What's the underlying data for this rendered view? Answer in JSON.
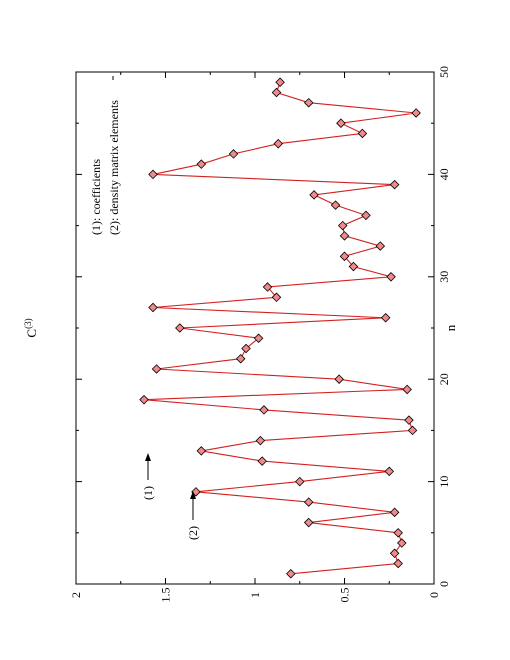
{
  "chart_data": {
    "type": "line",
    "orientation": "rotated-90-ccw",
    "xlabel": "n",
    "ylabel": "C",
    "ylabel_superscript": "(3)",
    "xlim": [
      0,
      50
    ],
    "ylim": [
      0,
      2
    ],
    "x_ticks": [
      "0",
      "10",
      "20",
      "30",
      "40",
      "50"
    ],
    "y_ticks": [
      "0",
      "0.5",
      "1",
      "1.5",
      "2"
    ],
    "grid": false,
    "marker": "diamond",
    "line_color": "#d42020",
    "marker_fill": "#f08a8a",
    "legend": {
      "placement": "top-left",
      "entries": [
        "(1): coefficients",
        "(2): density matrix elements"
      ]
    },
    "annotations": [
      {
        "label": "(1)",
        "x": 13,
        "y": 1.3
      },
      {
        "label": "(2)",
        "x": 9,
        "y": 1.32
      }
    ],
    "series": [
      {
        "x": [
          1,
          2,
          3,
          4,
          5,
          6,
          7,
          8,
          9,
          10,
          11,
          12,
          13,
          14,
          15,
          16,
          17,
          18,
          19,
          20,
          21,
          22,
          23,
          24,
          25,
          26,
          27,
          28,
          29,
          30,
          31,
          32,
          33,
          34,
          35,
          36,
          37,
          38,
          39,
          40,
          41,
          42,
          43,
          44,
          45,
          46,
          47,
          48,
          49
        ],
        "values": [
          0.8,
          0.2,
          0.22,
          0.18,
          0.2,
          0.7,
          0.22,
          0.7,
          1.33,
          0.75,
          0.25,
          0.96,
          1.3,
          0.97,
          0.12,
          0.14,
          0.95,
          1.62,
          0.15,
          0.53,
          1.55,
          1.08,
          1.05,
          0.98,
          1.42,
          0.27,
          1.57,
          0.88,
          0.93,
          0.24,
          0.45,
          0.5,
          0.3,
          0.5,
          0.51,
          0.38,
          0.55,
          0.67,
          0.22,
          1.57,
          1.3,
          1.12,
          0.87,
          0.4,
          0.52,
          0.1,
          0.7,
          0.88,
          0.86
        ]
      }
    ]
  }
}
